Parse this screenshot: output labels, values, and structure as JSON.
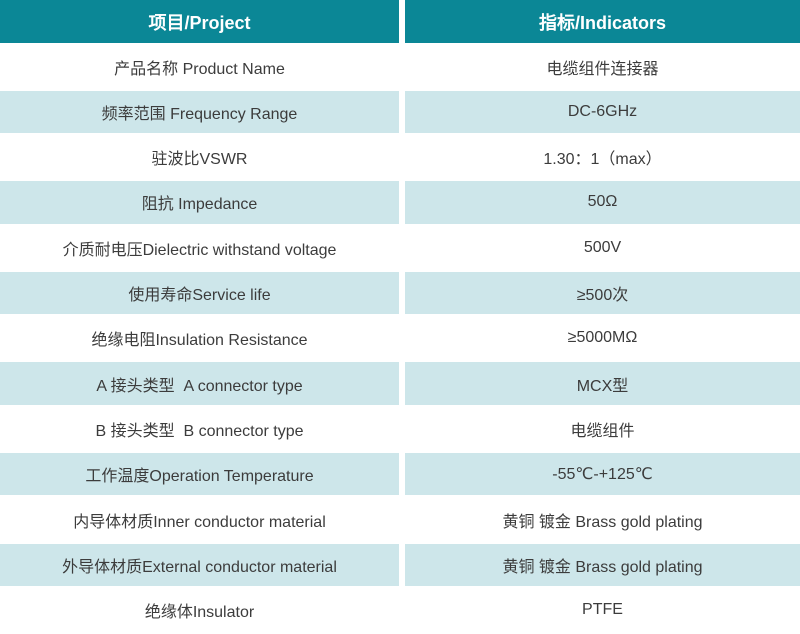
{
  "table": {
    "title": "product-spec-table",
    "colors": {
      "header_bg": "#0b8796",
      "header_text": "#ffffff",
      "row_bg": "#ffffff",
      "row_alt_bg": "#cde6ea",
      "body_text": "#3c3c3c",
      "divider": "#ffffff"
    },
    "header": {
      "project": "项目/Project",
      "indicator": "指标/Indicators"
    },
    "rows": [
      {
        "project": "产品名称 Product Name",
        "indicator": "电缆组件连接器"
      },
      {
        "project": "频率范围 Frequency Range",
        "indicator": "DC-6GHz"
      },
      {
        "project": "驻波比VSWR",
        "indicator": "1.30：1（max）"
      },
      {
        "project": "阻抗 Impedance",
        "indicator": "50Ω"
      },
      {
        "project": "介质耐电压Dielectric withstand voltage",
        "indicator": "500V"
      },
      {
        "project": "使用寿命Service life",
        "indicator": "≥500次"
      },
      {
        "project": "绝缘电阻Insulation Resistance",
        "indicator": "≥5000MΩ"
      },
      {
        "project": "A 接头类型  A connector type",
        "indicator": "MCX型"
      },
      {
        "project": "B 接头类型  B connector type",
        "indicator": "电缆组件"
      },
      {
        "project": "工作温度Operation Temperature",
        "indicator": "-55℃-+125℃"
      },
      {
        "project": "内导体材质Inner conductor material",
        "indicator": "黄铜 镀金 Brass gold plating"
      },
      {
        "project": "外导体材质External conductor material",
        "indicator": "黄铜 镀金 Brass gold plating"
      },
      {
        "project": "绝缘体Insulator",
        "indicator": "PTFE"
      }
    ]
  }
}
